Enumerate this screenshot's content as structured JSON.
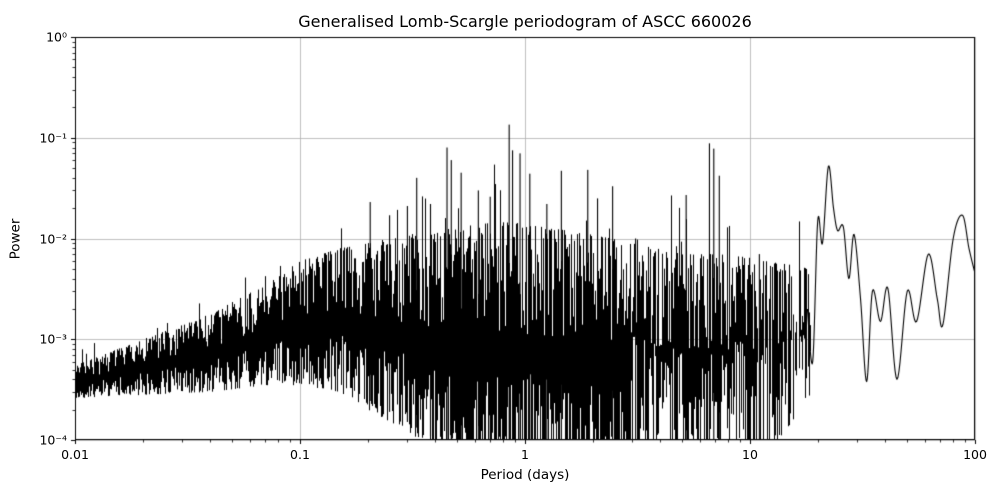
{
  "chart_data": {
    "type": "line",
    "title": "Generalised Lomb-Scargle periodogram of ASCC 660026",
    "xlabel": "Period (days)",
    "ylabel": "Power",
    "x_scale": "log",
    "y_scale": "log",
    "xlim": [
      0.01,
      100
    ],
    "ylim": [
      0.0001,
      1
    ],
    "grid": true,
    "line_color": "#000000",
    "grid_color": "#b0b0b0",
    "background_color": "#ffffff",
    "x_ticks": [
      {
        "value": 0.01,
        "label": "0.01"
      },
      {
        "value": 0.1,
        "label": "0.1"
      },
      {
        "value": 1,
        "label": "1"
      },
      {
        "value": 10,
        "label": "10"
      },
      {
        "value": 100,
        "label": "100"
      }
    ],
    "y_ticks": [
      {
        "value": 1,
        "label": "10⁰"
      },
      {
        "value": 0.1,
        "label": "10⁻¹"
      },
      {
        "value": 0.01,
        "label": "10⁻²"
      },
      {
        "value": 0.001,
        "label": "10⁻³"
      },
      {
        "value": 0.0001,
        "label": "10⁻⁴"
      }
    ],
    "main_peak": {
      "period": 0.85,
      "power": 0.135
    },
    "noise_seed": 42,
    "noise_region": [
      0.01,
      19
    ],
    "noise_envelope": [
      [
        0.01,
        0.00026,
        0.00055
      ],
      [
        0.02,
        0.00028,
        0.001
      ],
      [
        0.04,
        0.0003,
        0.0018
      ],
      [
        0.07,
        0.00035,
        0.0035
      ],
      [
        0.1,
        0.00035,
        0.006
      ],
      [
        0.15,
        0.0003,
        0.008
      ],
      [
        0.2,
        0.0002,
        0.009
      ],
      [
        0.3,
        0.00012,
        0.011
      ],
      [
        0.5,
        6e-05,
        0.013
      ],
      [
        0.8,
        5e-05,
        0.015
      ],
      [
        1.2,
        5e-05,
        0.013
      ],
      [
        2.0,
        5e-05,
        0.011
      ],
      [
        3.0,
        5e-05,
        0.009
      ],
      [
        5.0,
        5e-05,
        0.007
      ],
      [
        8.0,
        5e-05,
        0.007
      ],
      [
        12.0,
        6e-05,
        0.006
      ],
      [
        19.0,
        0.0003,
        0.005
      ]
    ],
    "peaks": [
      [
        0.205,
        0.023
      ],
      [
        0.25,
        0.017
      ],
      [
        0.3,
        0.021
      ],
      [
        0.33,
        0.04
      ],
      [
        0.38,
        0.022
      ],
      [
        0.45,
        0.08
      ],
      [
        0.47,
        0.06
      ],
      [
        0.52,
        0.045
      ],
      [
        0.62,
        0.03
      ],
      [
        0.7,
        0.026
      ],
      [
        0.85,
        0.135
      ],
      [
        0.88,
        0.075
      ],
      [
        0.95,
        0.07
      ],
      [
        1.05,
        0.044
      ],
      [
        1.25,
        0.022
      ],
      [
        1.45,
        0.047
      ],
      [
        1.9,
        0.048
      ],
      [
        2.1,
        0.025
      ],
      [
        2.45,
        0.033
      ],
      [
        3.1,
        0.01
      ],
      [
        5.2,
        0.027
      ],
      [
        6.6,
        0.088
      ],
      [
        6.9,
        0.078
      ],
      [
        7.3,
        0.042
      ],
      [
        11.0,
        0.007
      ]
    ],
    "smooth_tail": [
      [
        18.0,
        0.002
      ],
      [
        19.0,
        0.0006
      ],
      [
        20.0,
        0.015
      ],
      [
        21.0,
        0.009
      ],
      [
        22.3,
        0.052
      ],
      [
        23.5,
        0.02
      ],
      [
        24.5,
        0.012
      ],
      [
        26.0,
        0.013
      ],
      [
        27.5,
        0.004
      ],
      [
        29.0,
        0.011
      ],
      [
        31.0,
        0.0025
      ],
      [
        33.0,
        0.00038
      ],
      [
        35.0,
        0.003
      ],
      [
        38.0,
        0.0015
      ],
      [
        41.0,
        0.0032
      ],
      [
        45.0,
        0.0004
      ],
      [
        50.0,
        0.003
      ],
      [
        55.0,
        0.0015
      ],
      [
        62.0,
        0.007
      ],
      [
        68.0,
        0.0025
      ],
      [
        72.0,
        0.0014
      ],
      [
        80.0,
        0.01
      ],
      [
        88.0,
        0.017
      ],
      [
        94.0,
        0.008
      ],
      [
        100.0,
        0.0045
      ]
    ]
  }
}
